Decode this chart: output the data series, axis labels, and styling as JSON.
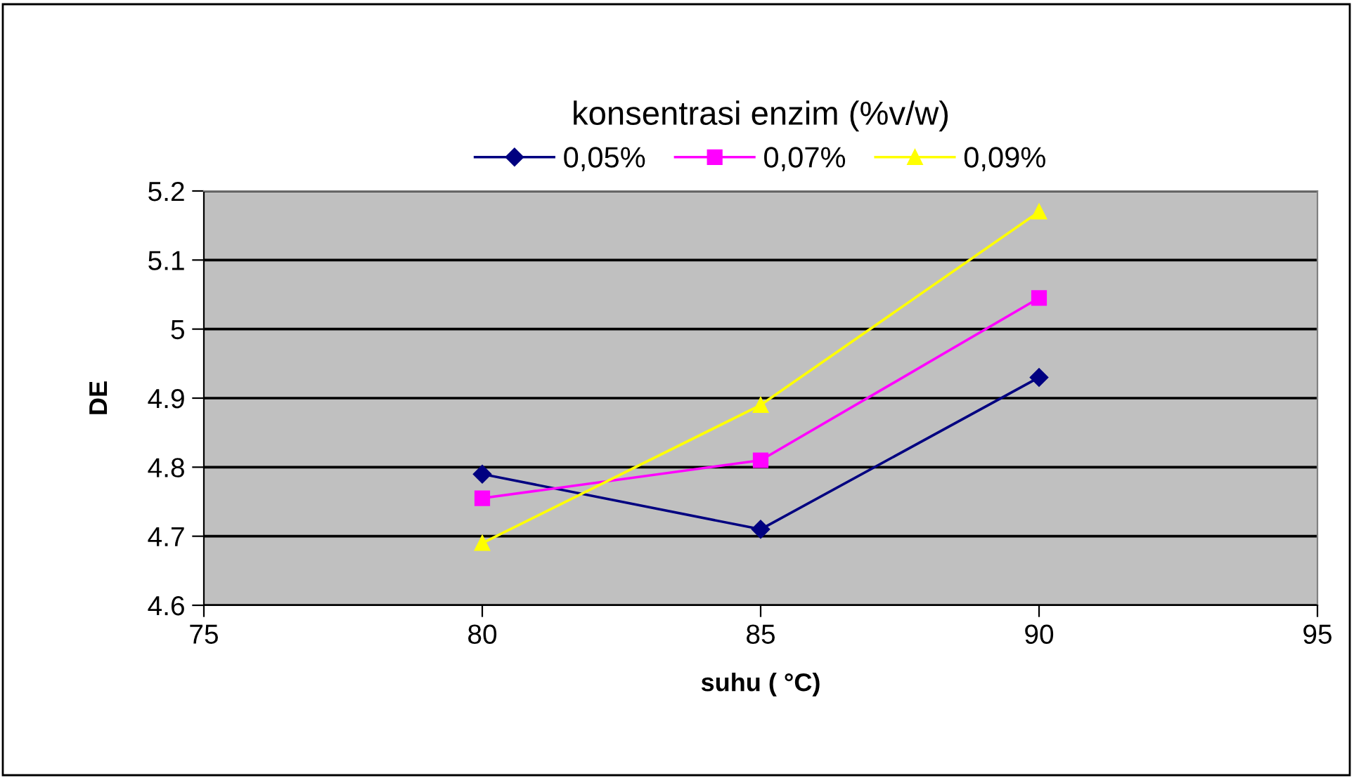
{
  "chart_data": {
    "type": "line",
    "legend_title": "konsentrasi enzim (%v/w)",
    "xlabel": "suhu ( °C)",
    "ylabel": "DE",
    "x": [
      80,
      85,
      90
    ],
    "series": [
      {
        "name": "0,05%",
        "color": "#000080",
        "marker": "diamond",
        "values": [
          4.79,
          4.71,
          4.93
        ]
      },
      {
        "name": "0,07%",
        "color": "#ff00ff",
        "marker": "square",
        "values": [
          4.755,
          4.81,
          5.045
        ]
      },
      {
        "name": "0,09%",
        "color": "#ffff00",
        "marker": "triangle",
        "values": [
          4.69,
          4.89,
          5.17
        ]
      }
    ],
    "xlim": [
      75,
      95
    ],
    "xticks": [
      75,
      80,
      85,
      90,
      95
    ],
    "ylim": [
      4.6,
      5.2
    ],
    "yticks": [
      4.6,
      4.7,
      4.8,
      4.9,
      5,
      5.1,
      5.2
    ],
    "grid": "y",
    "legend": "top",
    "line_style": "solid"
  }
}
